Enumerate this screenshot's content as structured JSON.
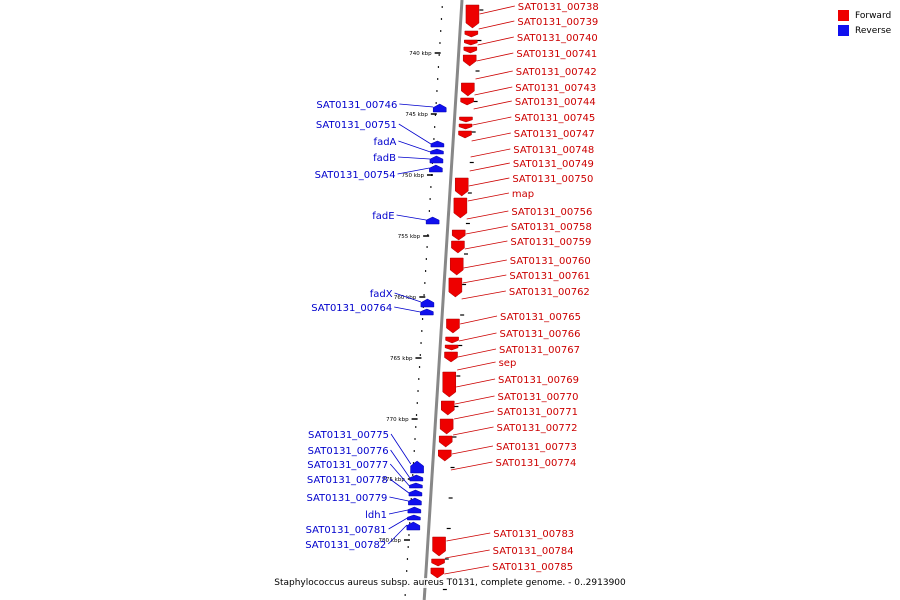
{
  "caption": "Staphylococcus aureus subsp. aureus T0131, complete genome. - 0..2913900",
  "colors": {
    "forward": "#ee0000",
    "reverse": "#1010ee",
    "forward_label": "#cc0000",
    "reverse_label": "#0000cc",
    "axis": "#888888"
  },
  "legend": [
    {
      "label": "Forward",
      "color": "#ee0000"
    },
    {
      "label": "Reverse",
      "color": "#1010ee"
    }
  ],
  "ticks": [
    "740 kbp",
    "745 kbp",
    "750 kbp",
    "755 kbp",
    "760 kbp",
    "765 kbp",
    "770 kbp",
    "775 kbp",
    "780 kbp"
  ],
  "forward_genes": [
    "SAT0131_00738",
    "SAT0131_00739",
    "SAT0131_00740",
    "SAT0131_00741",
    "SAT0131_00742",
    "SAT0131_00743",
    "SAT0131_00744",
    "SAT0131_00745",
    "SAT0131_00747",
    "SAT0131_00748",
    "SAT0131_00749",
    "SAT0131_00750",
    "map",
    "SAT0131_00756",
    "SAT0131_00758",
    "SAT0131_00759",
    "SAT0131_00760",
    "SAT0131_00761",
    "SAT0131_00762",
    "SAT0131_00765",
    "SAT0131_00766",
    "SAT0131_00767",
    "sep",
    "SAT0131_00769",
    "SAT0131_00770",
    "SAT0131_00771",
    "SAT0131_00772",
    "SAT0131_00773",
    "SAT0131_00774",
    "SAT0131_00783",
    "SAT0131_00784",
    "SAT0131_00785"
  ],
  "reverse_genes": [
    "SAT0131_00746",
    "SAT0131_00751",
    "fadA",
    "fadB",
    "SAT0131_00754",
    "fadE",
    "fadX",
    "SAT0131_00764",
    "SAT0131_00775",
    "SAT0131_00776",
    "SAT0131_00777",
    "SAT0131_00778",
    "SAT0131_00779",
    "ldh1",
    "SAT0131_00781",
    "SAT0131_00782"
  ]
}
